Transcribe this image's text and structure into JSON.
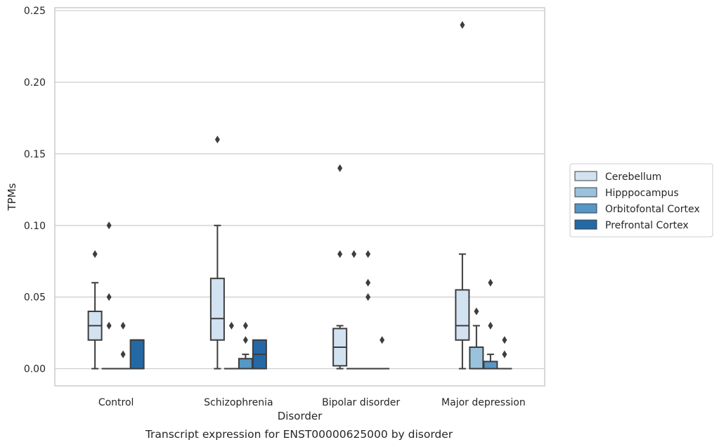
{
  "chart_data": {
    "type": "box",
    "title": "",
    "caption": "Transcript expression for ENST00000625000 by disorder",
    "xlabel": "Disorder",
    "ylabel": "TPMs",
    "ylim": [
      -0.012,
      0.252
    ],
    "yticks": [
      0.0,
      0.05,
      0.1,
      0.15,
      0.2,
      0.25
    ],
    "ytick_labels": [
      "0.00",
      "0.05",
      "0.10",
      "0.15",
      "0.20",
      "0.25"
    ],
    "grid": "horizontal",
    "legend_placement": "right",
    "categories": [
      "Control",
      "Schizophrenia",
      "Bipolar disorder",
      "Major depression"
    ],
    "series": [
      {
        "name": "Cerebellum",
        "color": "#d3e2f1",
        "boxes": [
          {
            "q1": 0.02,
            "median": 0.03,
            "q3": 0.04,
            "whisker_low": 0.0,
            "whisker_high": 0.06,
            "outliers": [
              0.08
            ]
          },
          {
            "q1": 0.02,
            "median": 0.035,
            "q3": 0.063,
            "whisker_low": 0.0,
            "whisker_high": 0.1,
            "outliers": [
              0.16
            ]
          },
          {
            "q1": 0.002,
            "median": 0.015,
            "q3": 0.028,
            "whisker_low": 0.0,
            "whisker_high": 0.03,
            "outliers": [
              0.08,
              0.14
            ]
          },
          {
            "q1": 0.02,
            "median": 0.03,
            "q3": 0.055,
            "whisker_low": 0.0,
            "whisker_high": 0.08,
            "outliers": [
              0.24
            ]
          }
        ]
      },
      {
        "name": "Hipppocampus",
        "color": "#9ac2dc",
        "boxes": [
          {
            "q1": 0.0,
            "median": 0.0,
            "q3": 0.0,
            "whisker_low": 0.0,
            "whisker_high": 0.0,
            "outliers": [
              0.03,
              0.05,
              0.1
            ]
          },
          {
            "q1": 0.0,
            "median": 0.0,
            "q3": 0.0,
            "whisker_low": 0.0,
            "whisker_high": 0.0,
            "outliers": [
              0.03
            ]
          },
          {
            "q1": 0.0,
            "median": 0.0,
            "q3": 0.0,
            "whisker_low": 0.0,
            "whisker_high": 0.0,
            "outliers": [
              0.08
            ]
          },
          {
            "q1": 0.0,
            "median": 0.0,
            "q3": 0.015,
            "whisker_low": 0.0,
            "whisker_high": 0.03,
            "outliers": [
              0.04
            ]
          }
        ]
      },
      {
        "name": "Orbitofontal Cortex",
        "color": "#5697c6",
        "boxes": [
          {
            "q1": 0.0,
            "median": 0.0,
            "q3": 0.0,
            "whisker_low": 0.0,
            "whisker_high": 0.0,
            "outliers": [
              0.01,
              0.03
            ]
          },
          {
            "q1": 0.0,
            "median": 0.0,
            "q3": 0.007,
            "whisker_low": 0.0,
            "whisker_high": 0.01,
            "outliers": [
              0.02,
              0.03
            ]
          },
          {
            "q1": 0.0,
            "median": 0.0,
            "q3": 0.0,
            "whisker_low": 0.0,
            "whisker_high": 0.0,
            "outliers": [
              0.05,
              0.06,
              0.08
            ]
          },
          {
            "q1": 0.0,
            "median": 0.0,
            "q3": 0.005,
            "whisker_low": 0.0,
            "whisker_high": 0.01,
            "outliers": [
              0.03,
              0.06
            ]
          }
        ]
      },
      {
        "name": "Prefrontal Cortex",
        "color": "#2469a6",
        "boxes": [
          {
            "q1": 0.0,
            "median": 0.02,
            "q3": 0.02,
            "whisker_low": 0.0,
            "whisker_high": 0.02,
            "outliers": []
          },
          {
            "q1": 0.0,
            "median": 0.01,
            "q3": 0.02,
            "whisker_low": 0.0,
            "whisker_high": 0.02,
            "outliers": []
          },
          {
            "q1": 0.0,
            "median": 0.0,
            "q3": 0.0,
            "whisker_low": 0.0,
            "whisker_high": 0.0,
            "outliers": [
              0.02
            ]
          },
          {
            "q1": 0.0,
            "median": 0.0,
            "q3": 0.0,
            "whisker_low": 0.0,
            "whisker_high": 0.0,
            "outliers": [
              0.01,
              0.02
            ]
          }
        ]
      }
    ]
  }
}
